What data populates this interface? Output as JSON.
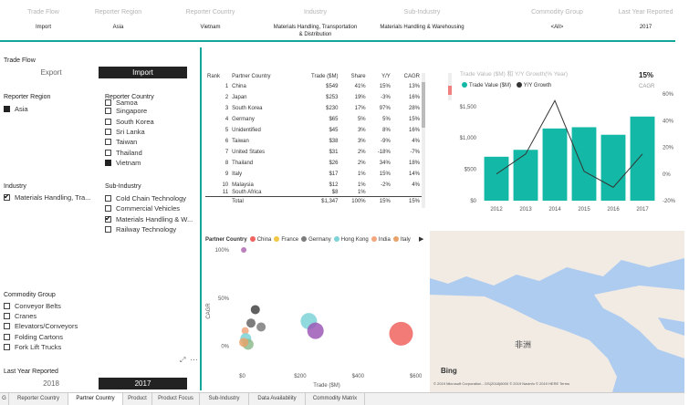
{
  "header": {
    "columns": [
      {
        "label": "Trade Flow",
        "value": "Import"
      },
      {
        "label": "Reporter Region",
        "value": "Asia"
      },
      {
        "label": "Reporter Country",
        "value": "Vietnam"
      },
      {
        "label": "Industry",
        "value": "Materials Handling, Transportation & Distribution"
      },
      {
        "label": "Sub-Industry",
        "value": "Materials Handling & Warehousing"
      },
      {
        "label": "Commodity Group",
        "value": "<All>"
      },
      {
        "label": "Last Year Reported",
        "value": "2017"
      }
    ]
  },
  "left": {
    "trade_flow": {
      "label": "Trade Flow",
      "options": [
        "Export",
        "Import"
      ],
      "selected": "Import"
    },
    "reporter_region": {
      "label": "Reporter Region",
      "items": [
        {
          "text": "Asia",
          "checked": true
        }
      ]
    },
    "reporter_country": {
      "label": "Reporter Country",
      "items": [
        {
          "text": "Samoa",
          "checked": false
        },
        {
          "text": "Singapore",
          "checked": false
        },
        {
          "text": "South Korea",
          "checked": false
        },
        {
          "text": "Sri Lanka",
          "checked": false
        },
        {
          "text": "Taiwan",
          "checked": false
        },
        {
          "text": "Thailand",
          "checked": false
        },
        {
          "text": "Vietnam",
          "checked": true
        }
      ]
    },
    "industry": {
      "label": "Industry",
      "items": [
        {
          "text": "Materials Handling, Tra...",
          "checked": true
        }
      ]
    },
    "sub_industry": {
      "label": "Sub-Industry",
      "items": [
        {
          "text": "Cold Chain Technology",
          "checked": false
        },
        {
          "text": "Commercial Vehicles",
          "checked": false
        },
        {
          "text": "Materials Handling & W...",
          "checked": true
        },
        {
          "text": "Railway Technology",
          "checked": false
        }
      ]
    },
    "commodity_group": {
      "label": "Commodity Group",
      "items": [
        {
          "text": "Conveyor Belts",
          "checked": false
        },
        {
          "text": "Cranes",
          "checked": false
        },
        {
          "text": "Elevators/Conveyors",
          "checked": false
        },
        {
          "text": "Folding Cartons",
          "checked": false
        },
        {
          "text": "Fork Lift Trucks",
          "checked": false
        }
      ]
    },
    "last_year": {
      "label": "Last Year Reported",
      "options": [
        "2018",
        "2017"
      ],
      "selected": "2017"
    },
    "more": "…"
  },
  "table": {
    "headers": [
      "Rank",
      "Partner Country",
      "Trade ($M)",
      "Share",
      "Y/Y",
      "CAGR"
    ],
    "rows": [
      [
        "1",
        "China",
        "$549",
        "41%",
        "15%",
        "13%"
      ],
      [
        "2",
        "Japan",
        "$253",
        "19%",
        "-3%",
        "16%"
      ],
      [
        "3",
        "South Korea",
        "$230",
        "17%",
        "97%",
        "28%"
      ],
      [
        "4",
        "Germany",
        "$65",
        "5%",
        "5%",
        "15%"
      ],
      [
        "5",
        "Unidentified",
        "$45",
        "3%",
        "8%",
        "16%"
      ],
      [
        "6",
        "Taiwan",
        "$38",
        "3%",
        "-9%",
        "4%"
      ],
      [
        "7",
        "United States",
        "$31",
        "2%",
        "-18%",
        "-7%"
      ],
      [
        "8",
        "Thailand",
        "$26",
        "2%",
        "34%",
        "18%"
      ],
      [
        "9",
        "Italy",
        "$17",
        "1%",
        "15%",
        "14%"
      ],
      [
        "10",
        "Malaysia",
        "$12",
        "1%",
        "-2%",
        "4%"
      ],
      [
        "11",
        "South Africa",
        "$8",
        "1%",
        "",
        ""
      ]
    ],
    "total": [
      "",
      "Total",
      "$1,347",
      "100%",
      "15%",
      "15%"
    ]
  },
  "bar_line": {
    "title": "Trade Value ($M) 和 Y/Y Growth(% Year)",
    "cagr_value": "15%",
    "cagr_label": "CAGR",
    "legend": [
      "Trade Value ($M)",
      "Y/Y Growth"
    ],
    "colors": {
      "bar": "#14b8a6",
      "line": "#333333"
    }
  },
  "bubble": {
    "legend_title": "Partner Country",
    "legend": [
      {
        "name": "China",
        "color": "#f0645f"
      },
      {
        "name": "France",
        "color": "#f2c744"
      },
      {
        "name": "Germany",
        "color": "#7d7d7d"
      },
      {
        "name": "Hong Kong",
        "color": "#7dd3d7"
      },
      {
        "name": "India",
        "color": "#f3a77c"
      },
      {
        "name": "Italy",
        "color": "#e8a36a"
      }
    ],
    "xlabel": "Trade ($M)",
    "ylabel": "CAGR"
  },
  "map": {
    "label_africa": "非洲",
    "bing": "Bing",
    "copyright": "© 2019 Microsoft Corporation - GS(2018)6000 © 2019 Navinfo © 2019 HERE Terms"
  },
  "tabs": [
    "G",
    "Reporter Country",
    "Partner Country",
    "Product",
    "Product Focus",
    "Sub-Industry",
    "Data Availability",
    "Commodity Matrix"
  ],
  "chart_data": [
    {
      "type": "bar",
      "title": "Trade Value ($M) 和 Y/Y Growth(% Year)",
      "categories": [
        "2012",
        "2013",
        "2014",
        "2015",
        "2016",
        "2017"
      ],
      "series": [
        {
          "name": "Trade Value ($M)",
          "type": "bar",
          "values": [
            700,
            810,
            1150,
            1170,
            1050,
            1340
          ]
        },
        {
          "name": "Y/Y Growth",
          "type": "line",
          "values": [
            0,
            15,
            55,
            2,
            -10,
            15
          ]
        }
      ],
      "yticks_left": [
        "$0",
        "$500",
        "$1,000",
        "$1,500"
      ],
      "yticks_right": [
        "-20%",
        "0%",
        "20%",
        "40%",
        "60%"
      ],
      "ylim": [
        0,
        1700
      ],
      "y2lim": [
        -20,
        60
      ]
    },
    {
      "type": "scatter",
      "xlabel": "Trade ($M)",
      "ylabel": "CAGR",
      "xticks": [
        "$0",
        "$200",
        "$400",
        "$600"
      ],
      "yticks": [
        "0%",
        "50%",
        "100%"
      ],
      "xlim": [
        -30,
        620
      ],
      "ylim": [
        -0.08,
        1.0
      ],
      "points": [
        {
          "x": 5,
          "y": 1.0,
          "r": 3,
          "color": "#b06ab3"
        },
        {
          "x": 45,
          "y": 0.38,
          "r": 5,
          "color": "#444444"
        },
        {
          "x": 30,
          "y": 0.24,
          "r": 5,
          "color": "#666666"
        },
        {
          "x": 65,
          "y": 0.2,
          "r": 5,
          "color": "#7d7d7d"
        },
        {
          "x": 10,
          "y": 0.16,
          "r": 4,
          "color": "#f3a77c"
        },
        {
          "x": 12,
          "y": 0.08,
          "r": 6,
          "color": "#7dd3d7"
        },
        {
          "x": 20,
          "y": 0.02,
          "r": 6,
          "color": "#8fbc8f"
        },
        {
          "x": 5,
          "y": 0.04,
          "r": 5,
          "color": "#e8a36a"
        },
        {
          "x": 230,
          "y": 0.26,
          "r": 9,
          "color": "#7dd3d7"
        },
        {
          "x": 253,
          "y": 0.16,
          "r": 9,
          "color": "#9b59b6"
        },
        {
          "x": 549,
          "y": 0.13,
          "r": 13,
          "color": "#f0645f"
        }
      ]
    }
  ]
}
